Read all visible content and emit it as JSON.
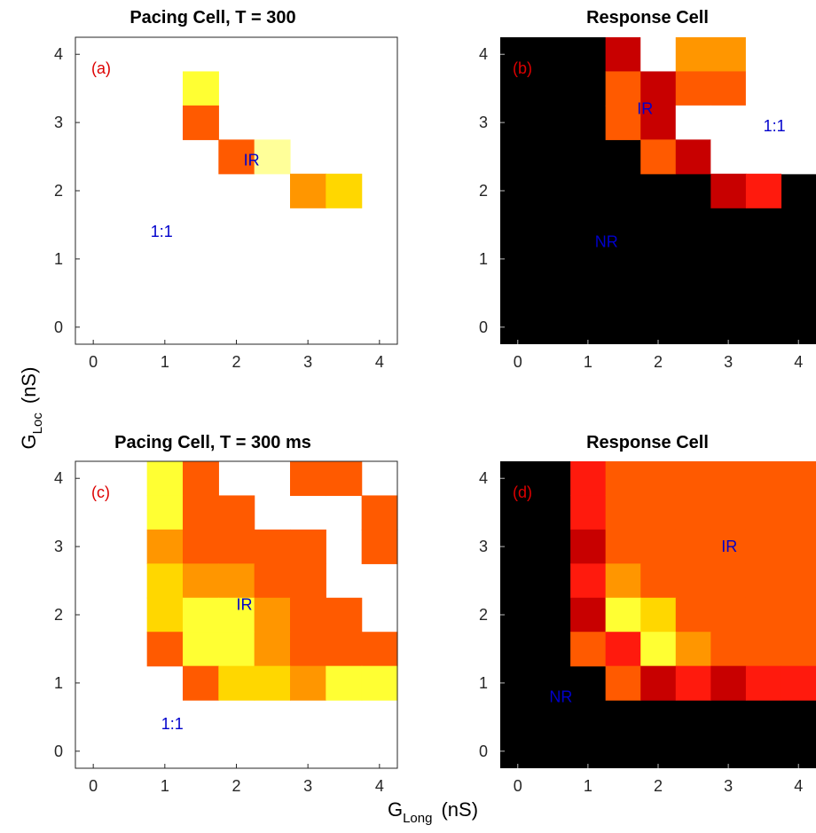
{
  "figure": {
    "xlabel": "G",
    "xlabel_sub": "Long",
    "xlabel_unit": "(nS)",
    "ylabel": "G",
    "ylabel_sub": "Loc",
    "ylabel_unit": "(nS)"
  },
  "palette": {
    "black": "#000000",
    "dark_red": "#c80000",
    "red": "#ff1a0d",
    "orange_red": "#ff5a00",
    "orange": "#ff9600",
    "gold": "#ffd700",
    "yellow": "#ffff33",
    "pale_yellow": "#ffff99",
    "panel_tag_color": "#dd0000",
    "region_label_color": "#0000cc"
  },
  "chart_data": [
    {
      "id": "a",
      "type": "heatmap",
      "title": "Pacing Cell, T = 300",
      "panel_tag": "(a)",
      "background": "white",
      "xlim": [
        -0.25,
        4.25
      ],
      "ylim": [
        -0.25,
        4.25
      ],
      "xticks": [
        0,
        1,
        2,
        3,
        4
      ],
      "yticks": [
        0,
        1,
        2,
        3,
        4
      ],
      "cell_size": 0.5,
      "cells": [
        {
          "x": 1.5,
          "y": 3.5,
          "color": "yellow"
        },
        {
          "x": 1.5,
          "y": 3.0,
          "color": "orange_red"
        },
        {
          "x": 2.0,
          "y": 2.5,
          "color": "orange_red"
        },
        {
          "x": 2.5,
          "y": 2.5,
          "color": "pale_yellow"
        },
        {
          "x": 3.0,
          "y": 2.0,
          "color": "orange"
        },
        {
          "x": 3.5,
          "y": 2.0,
          "color": "gold"
        }
      ],
      "region_labels": [
        {
          "text": "IR",
          "x": 2.1,
          "y": 2.45
        },
        {
          "text": "1:1",
          "x": 0.8,
          "y": 1.4
        }
      ]
    },
    {
      "id": "b",
      "type": "heatmap",
      "title": "Response Cell",
      "panel_tag": "(b)",
      "background": "black",
      "xlim": [
        -0.25,
        4.25
      ],
      "ylim": [
        -0.25,
        4.25
      ],
      "xticks": [
        0,
        1,
        2,
        3,
        4
      ],
      "yticks": [
        0,
        1,
        2,
        3,
        4
      ],
      "cell_size": 0.5,
      "cells": [
        {
          "x": 1.5,
          "y": 4.0,
          "color": "dark_red"
        },
        {
          "x": 2.0,
          "y": 4.0,
          "color": "white"
        },
        {
          "x": 2.5,
          "y": 4.0,
          "color": "orange"
        },
        {
          "x": 3.0,
          "y": 4.0,
          "color": "orange"
        },
        {
          "x": 3.5,
          "y": 4.0,
          "color": "white"
        },
        {
          "x": 4.0,
          "y": 4.0,
          "color": "white"
        },
        {
          "x": 1.5,
          "y": 3.5,
          "color": "orange_red"
        },
        {
          "x": 2.0,
          "y": 3.5,
          "color": "dark_red"
        },
        {
          "x": 2.5,
          "y": 3.5,
          "color": "orange_red"
        },
        {
          "x": 3.0,
          "y": 3.5,
          "color": "orange_red"
        },
        {
          "x": 3.5,
          "y": 3.5,
          "color": "white"
        },
        {
          "x": 4.0,
          "y": 3.5,
          "color": "white"
        },
        {
          "x": 1.5,
          "y": 3.0,
          "color": "orange_red"
        },
        {
          "x": 2.0,
          "y": 3.0,
          "color": "dark_red"
        },
        {
          "x": 2.5,
          "y": 3.0,
          "color": "white"
        },
        {
          "x": 3.0,
          "y": 3.0,
          "color": "white"
        },
        {
          "x": 3.5,
          "y": 3.0,
          "color": "white"
        },
        {
          "x": 4.0,
          "y": 3.0,
          "color": "white"
        },
        {
          "x": 2.0,
          "y": 2.5,
          "color": "orange_red"
        },
        {
          "x": 2.5,
          "y": 2.5,
          "color": "dark_red"
        },
        {
          "x": 3.0,
          "y": 2.5,
          "color": "white"
        },
        {
          "x": 3.5,
          "y": 2.5,
          "color": "white"
        },
        {
          "x": 4.0,
          "y": 2.5,
          "color": "white"
        },
        {
          "x": 3.0,
          "y": 2.0,
          "color": "dark_red"
        },
        {
          "x": 3.5,
          "y": 2.0,
          "color": "red"
        }
      ],
      "region_labels": [
        {
          "text": "IR",
          "x": 1.7,
          "y": 3.2
        },
        {
          "text": "1:1",
          "x": 3.5,
          "y": 2.95
        },
        {
          "text": "NR",
          "x": 1.1,
          "y": 1.25
        }
      ]
    },
    {
      "id": "c",
      "type": "heatmap",
      "title": "Pacing Cell, T = 300 ms",
      "panel_tag": "(c)",
      "background": "white",
      "xlim": [
        -0.25,
        4.25
      ],
      "ylim": [
        -0.25,
        4.25
      ],
      "xticks": [
        0,
        1,
        2,
        3,
        4
      ],
      "yticks": [
        0,
        1,
        2,
        3,
        4
      ],
      "cell_size": 0.5,
      "cells": [
        {
          "x": 1.0,
          "y": 4.0,
          "color": "yellow"
        },
        {
          "x": 1.5,
          "y": 4.0,
          "color": "orange_red"
        },
        {
          "x": 3.0,
          "y": 4.0,
          "color": "orange_red"
        },
        {
          "x": 3.5,
          "y": 4.0,
          "color": "orange_red"
        },
        {
          "x": 1.0,
          "y": 3.5,
          "color": "yellow"
        },
        {
          "x": 1.5,
          "y": 3.5,
          "color": "orange_red"
        },
        {
          "x": 2.0,
          "y": 3.5,
          "color": "orange_red"
        },
        {
          "x": 4.0,
          "y": 3.5,
          "color": "orange_red"
        },
        {
          "x": 1.0,
          "y": 3.0,
          "color": "orange"
        },
        {
          "x": 1.5,
          "y": 3.0,
          "color": "orange_red"
        },
        {
          "x": 2.0,
          "y": 3.0,
          "color": "orange_red"
        },
        {
          "x": 2.5,
          "y": 3.0,
          "color": "orange_red"
        },
        {
          "x": 3.0,
          "y": 3.0,
          "color": "orange_red"
        },
        {
          "x": 4.0,
          "y": 3.0,
          "color": "orange_red"
        },
        {
          "x": 1.0,
          "y": 2.5,
          "color": "gold"
        },
        {
          "x": 1.5,
          "y": 2.5,
          "color": "orange"
        },
        {
          "x": 2.0,
          "y": 2.5,
          "color": "orange"
        },
        {
          "x": 2.5,
          "y": 2.5,
          "color": "orange_red"
        },
        {
          "x": 3.0,
          "y": 2.5,
          "color": "orange_red"
        },
        {
          "x": 1.0,
          "y": 2.0,
          "color": "gold"
        },
        {
          "x": 1.5,
          "y": 2.0,
          "color": "yellow"
        },
        {
          "x": 2.0,
          "y": 2.0,
          "color": "yellow"
        },
        {
          "x": 2.5,
          "y": 2.0,
          "color": "orange"
        },
        {
          "x": 3.0,
          "y": 2.0,
          "color": "orange_red"
        },
        {
          "x": 3.5,
          "y": 2.0,
          "color": "orange_red"
        },
        {
          "x": 1.0,
          "y": 1.5,
          "color": "orange_red"
        },
        {
          "x": 1.5,
          "y": 1.5,
          "color": "yellow"
        },
        {
          "x": 2.0,
          "y": 1.5,
          "color": "yellow"
        },
        {
          "x": 2.5,
          "y": 1.5,
          "color": "orange"
        },
        {
          "x": 3.0,
          "y": 1.5,
          "color": "orange_red"
        },
        {
          "x": 3.5,
          "y": 1.5,
          "color": "orange_red"
        },
        {
          "x": 4.0,
          "y": 1.5,
          "color": "orange_red"
        },
        {
          "x": 1.5,
          "y": 1.0,
          "color": "orange_red"
        },
        {
          "x": 2.0,
          "y": 1.0,
          "color": "gold"
        },
        {
          "x": 2.5,
          "y": 1.0,
          "color": "gold"
        },
        {
          "x": 3.0,
          "y": 1.0,
          "color": "orange"
        },
        {
          "x": 3.5,
          "y": 1.0,
          "color": "yellow"
        },
        {
          "x": 4.0,
          "y": 1.0,
          "color": "yellow"
        }
      ],
      "region_labels": [
        {
          "text": "IR",
          "x": 2.0,
          "y": 2.15
        },
        {
          "text": "1:1",
          "x": 0.95,
          "y": 0.4
        }
      ]
    },
    {
      "id": "d",
      "type": "heatmap",
      "title": "Response Cell",
      "panel_tag": "(d)",
      "background": "black",
      "xlim": [
        -0.25,
        4.25
      ],
      "ylim": [
        -0.25,
        4.25
      ],
      "xticks": [
        0,
        1,
        2,
        3,
        4
      ],
      "yticks": [
        0,
        1,
        2,
        3,
        4
      ],
      "cell_size": 0.5,
      "cells": [
        {
          "x": 1.0,
          "y": 4.0,
          "color": "red"
        },
        {
          "x": 1.0,
          "y": 3.5,
          "color": "red"
        },
        {
          "x": 1.0,
          "y": 3.0,
          "color": "dark_red"
        },
        {
          "x": 1.0,
          "y": 2.5,
          "color": "red"
        },
        {
          "x": 1.0,
          "y": 2.0,
          "color": "dark_red"
        },
        {
          "x": 1.0,
          "y": 1.5,
          "color": "orange_red"
        },
        {
          "x": 1.5,
          "y": 4.0,
          "color": "orange_red"
        },
        {
          "x": 2.0,
          "y": 4.0,
          "color": "orange_red"
        },
        {
          "x": 2.5,
          "y": 4.0,
          "color": "orange_red"
        },
        {
          "x": 3.0,
          "y": 4.0,
          "color": "orange_red"
        },
        {
          "x": 3.5,
          "y": 4.0,
          "color": "orange_red"
        },
        {
          "x": 4.0,
          "y": 4.0,
          "color": "orange_red"
        },
        {
          "x": 1.5,
          "y": 3.5,
          "color": "orange_red"
        },
        {
          "x": 2.0,
          "y": 3.5,
          "color": "orange_red"
        },
        {
          "x": 2.5,
          "y": 3.5,
          "color": "orange_red"
        },
        {
          "x": 3.0,
          "y": 3.5,
          "color": "orange_red"
        },
        {
          "x": 3.5,
          "y": 3.5,
          "color": "orange_red"
        },
        {
          "x": 4.0,
          "y": 3.5,
          "color": "orange_red"
        },
        {
          "x": 1.5,
          "y": 3.0,
          "color": "orange_red"
        },
        {
          "x": 2.0,
          "y": 3.0,
          "color": "orange_red"
        },
        {
          "x": 2.5,
          "y": 3.0,
          "color": "orange_red"
        },
        {
          "x": 3.0,
          "y": 3.0,
          "color": "orange_red"
        },
        {
          "x": 3.5,
          "y": 3.0,
          "color": "orange_red"
        },
        {
          "x": 4.0,
          "y": 3.0,
          "color": "orange_red"
        },
        {
          "x": 1.5,
          "y": 2.5,
          "color": "orange"
        },
        {
          "x": 2.0,
          "y": 2.5,
          "color": "orange_red"
        },
        {
          "x": 2.5,
          "y": 2.5,
          "color": "orange_red"
        },
        {
          "x": 3.0,
          "y": 2.5,
          "color": "orange_red"
        },
        {
          "x": 3.5,
          "y": 2.5,
          "color": "orange_red"
        },
        {
          "x": 4.0,
          "y": 2.5,
          "color": "orange_red"
        },
        {
          "x": 1.5,
          "y": 2.0,
          "color": "yellow"
        },
        {
          "x": 2.0,
          "y": 2.0,
          "color": "gold"
        },
        {
          "x": 2.5,
          "y": 2.0,
          "color": "orange_red"
        },
        {
          "x": 3.0,
          "y": 2.0,
          "color": "orange_red"
        },
        {
          "x": 3.5,
          "y": 2.0,
          "color": "orange_red"
        },
        {
          "x": 4.0,
          "y": 2.0,
          "color": "orange_red"
        },
        {
          "x": 1.5,
          "y": 1.5,
          "color": "red"
        },
        {
          "x": 2.0,
          "y": 1.5,
          "color": "yellow"
        },
        {
          "x": 2.5,
          "y": 1.5,
          "color": "orange"
        },
        {
          "x": 3.0,
          "y": 1.5,
          "color": "orange_red"
        },
        {
          "x": 3.5,
          "y": 1.5,
          "color": "orange_red"
        },
        {
          "x": 4.0,
          "y": 1.5,
          "color": "orange_red"
        },
        {
          "x": 1.5,
          "y": 1.0,
          "color": "orange_red"
        },
        {
          "x": 2.0,
          "y": 1.0,
          "color": "dark_red"
        },
        {
          "x": 2.5,
          "y": 1.0,
          "color": "red"
        },
        {
          "x": 3.0,
          "y": 1.0,
          "color": "dark_red"
        },
        {
          "x": 3.5,
          "y": 1.0,
          "color": "red"
        },
        {
          "x": 4.0,
          "y": 1.0,
          "color": "red"
        }
      ],
      "region_labels": [
        {
          "text": "IR",
          "x": 2.9,
          "y": 3.0
        },
        {
          "text": "NR",
          "x": 0.45,
          "y": 0.8
        }
      ]
    }
  ]
}
